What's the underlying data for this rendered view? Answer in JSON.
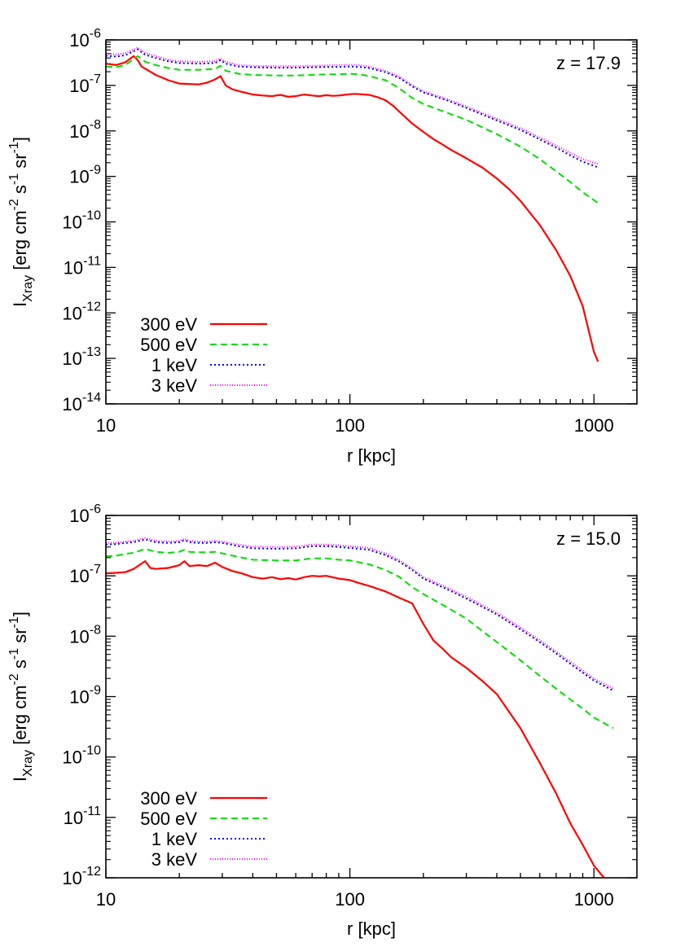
{
  "chart_data": [
    {
      "type": "line",
      "xscale": "log",
      "yscale": "log",
      "xlim": [
        10,
        1500
      ],
      "ylim": [
        1e-14,
        1e-06
      ],
      "xticks": [
        10,
        100,
        1000
      ],
      "xtick_labels": [
        "10",
        "100",
        "1000"
      ],
      "yticks_exp": [
        -6,
        -7,
        -8,
        -9,
        -10,
        -11,
        -12,
        -13,
        -14
      ],
      "ytick_base": "10",
      "xlabel": "r [kpc]",
      "ylabel": {
        "main": "I",
        "sub": "Xray",
        "units": "[erg cm",
        "e1": "-2",
        "mid1": " s",
        "e2": "-1",
        "mid2": " sr",
        "e3": "-1",
        "end": "]"
      },
      "annotation": "z = 17.9",
      "legend_position": "bottom-left",
      "series": [
        {
          "name": "300 eV",
          "color": "#ff0000",
          "dash": "solid",
          "x": [
            10,
            11,
            12,
            13,
            13.5,
            14,
            16,
            18,
            20,
            24,
            26,
            28,
            29.5,
            31,
            33,
            36,
            40,
            44,
            48,
            52,
            56,
            60,
            65,
            70,
            75,
            80,
            85,
            90,
            95,
            100,
            105,
            110,
            120,
            130,
            140,
            150,
            160,
            180,
            200,
            220,
            240,
            260,
            300,
            350,
            400,
            450,
            500,
            600,
            700,
            800,
            900,
            1000,
            1040
          ],
          "y": [
            3e-07,
            2.8e-07,
            3.2e-07,
            4.4e-07,
            3.6e-07,
            2.6e-07,
            1.7e-07,
            1.3e-07,
            1.1e-07,
            1.05e-07,
            1.15e-07,
            1.35e-07,
            1.6e-07,
            1e-07,
            8.2e-08,
            7.2e-08,
            6.3e-08,
            6e-08,
            5.8e-08,
            6.2e-08,
            5.6e-08,
            5.8e-08,
            6.3e-08,
            6e-08,
            5.8e-08,
            6.1e-08,
            5.9e-08,
            6e-08,
            6.2e-08,
            6.4e-08,
            6.5e-08,
            6.4e-08,
            6.2e-08,
            5.5e-08,
            4.7e-08,
            3.6e-08,
            2.6e-08,
            1.45e-08,
            9.5e-09,
            6.6e-09,
            5e-09,
            3.8e-09,
            2.5e-09,
            1.55e-09,
            9e-10,
            5.2e-10,
            2.9e-10,
            8.5e-11,
            2.4e-11,
            6.5e-12,
            1.4e-12,
            1.4e-13,
            8.5e-14
          ]
        },
        {
          "name": "500 eV",
          "color": "#00dd00",
          "dash": "8,5",
          "x": [
            10,
            11,
            12,
            13.5,
            14.5,
            16,
            18,
            20,
            24,
            28,
            29.5,
            31,
            35,
            40,
            50,
            60,
            70,
            80,
            90,
            100,
            110,
            120,
            140,
            160,
            180,
            200,
            250,
            300,
            400,
            500,
            600,
            700,
            800,
            900,
            1050
          ],
          "y": [
            2.6e-07,
            2.5e-07,
            2.8e-07,
            4.4e-07,
            3.3e-07,
            2.8e-07,
            2.4e-07,
            2.2e-07,
            2.2e-07,
            2.3e-07,
            2.7e-07,
            2.1e-07,
            1.8e-07,
            1.7e-07,
            1.65e-07,
            1.65e-07,
            1.7e-07,
            1.75e-07,
            1.75e-07,
            1.8e-07,
            1.75e-07,
            1.6e-07,
            1.3e-07,
            8.5e-08,
            5.3e-08,
            3.9e-08,
            2.5e-08,
            1.75e-08,
            8.5e-09,
            4.5e-09,
            2.4e-09,
            1.3e-09,
            7.5e-10,
            4.5e-10,
            2.5e-10
          ]
        },
        {
          "name": "1 keV",
          "color": "#0000ff",
          "dash": "2,3",
          "x": [
            10,
            11,
            12,
            13.5,
            14.5,
            16,
            18,
            20,
            24,
            28,
            29.5,
            31,
            35,
            40,
            50,
            60,
            70,
            80,
            90,
            100,
            110,
            120,
            140,
            160,
            180,
            200,
            250,
            300,
            400,
            500,
            600,
            700,
            800,
            900,
            1050
          ],
          "y": [
            4.5e-07,
            4.3e-07,
            4.6e-07,
            6.2e-07,
            4.7e-07,
            4e-07,
            3.4e-07,
            3.1e-07,
            3e-07,
            3.1e-07,
            3.6e-07,
            3e-07,
            2.6e-07,
            2.5e-07,
            2.45e-07,
            2.45e-07,
            2.5e-07,
            2.55e-07,
            2.55e-07,
            2.6e-07,
            2.55e-07,
            2.4e-07,
            1.95e-07,
            1.45e-07,
            9.5e-08,
            7e-08,
            4.7e-08,
            3.2e-08,
            1.7e-08,
            1.05e-08,
            6.5e-09,
            4.3e-09,
            2.9e-09,
            2.1e-09,
            1.55e-09
          ]
        },
        {
          "name": "3 keV",
          "color": "#ff00ff",
          "dash": "1,2",
          "x": [
            10,
            11,
            12,
            13.5,
            14.5,
            16,
            18,
            20,
            24,
            28,
            29.5,
            31,
            35,
            40,
            50,
            60,
            70,
            80,
            90,
            100,
            110,
            120,
            140,
            160,
            180,
            200,
            250,
            300,
            400,
            500,
            600,
            700,
            800,
            900,
            1050
          ],
          "y": [
            5e-07,
            4.8e-07,
            5.1e-07,
            6.8e-07,
            5.2e-07,
            4.4e-07,
            3.7e-07,
            3.4e-07,
            3.3e-07,
            3.4e-07,
            3.9e-07,
            3.3e-07,
            2.8e-07,
            2.7e-07,
            2.65e-07,
            2.65e-07,
            2.7e-07,
            2.75e-07,
            2.8e-07,
            2.85e-07,
            2.8e-07,
            2.6e-07,
            2.1e-07,
            1.55e-07,
            1.02e-07,
            7.5e-08,
            5e-08,
            3.45e-08,
            1.85e-08,
            1.15e-08,
            7.2e-09,
            4.8e-09,
            3.3e-09,
            2.4e-09,
            1.85e-09
          ]
        }
      ]
    },
    {
      "type": "line",
      "xscale": "log",
      "yscale": "log",
      "xlim": [
        10,
        1500
      ],
      "ylim": [
        1e-12,
        1e-06
      ],
      "xticks": [
        10,
        100,
        1000
      ],
      "xtick_labels": [
        "10",
        "100",
        "1000"
      ],
      "yticks_exp": [
        -6,
        -7,
        -8,
        -9,
        -10,
        -11,
        -12
      ],
      "ytick_base": "10",
      "xlabel": "r [kpc]",
      "ylabel": {
        "main": "I",
        "sub": "Xray",
        "units": "[erg cm",
        "e1": "-2",
        "mid1": " s",
        "e2": "-1",
        "mid2": " sr",
        "e3": "-1",
        "end": "]"
      },
      "annotation": "z = 15.0",
      "legend_position": "bottom-left",
      "series": [
        {
          "name": "300 eV",
          "color": "#ff0000",
          "dash": "solid",
          "x": [
            10,
            11,
            12,
            13,
            14.5,
            15.2,
            16,
            18,
            20,
            21,
            22,
            24,
            26,
            28,
            30,
            33,
            36,
            40,
            44,
            48,
            52,
            56,
            60,
            65,
            70,
            75,
            80,
            90,
            100,
            110,
            120,
            140,
            160,
            180,
            200,
            220,
            240,
            260,
            300,
            350,
            400,
            500,
            600,
            700,
            800,
            900,
            1000,
            1100,
            1200
          ],
          "y": [
            1.1e-07,
            1.12e-07,
            1.15e-07,
            1.3e-07,
            1.75e-07,
            1.35e-07,
            1.3e-07,
            1.35e-07,
            1.5e-07,
            1.75e-07,
            1.45e-07,
            1.5e-07,
            1.45e-07,
            1.65e-07,
            1.4e-07,
            1.2e-07,
            1.1e-07,
            9.5e-08,
            9e-08,
            9.5e-08,
            8.8e-08,
            9.2e-08,
            8.7e-08,
            9.5e-08,
            1e-07,
            9.8e-08,
            1e-07,
            9e-08,
            8.5e-08,
            7.5e-08,
            6.8e-08,
            5.5e-08,
            4.3e-08,
            3.5e-08,
            1.6e-08,
            8.5e-09,
            6.2e-09,
            4.5e-09,
            3e-09,
            1.8e-09,
            1.1e-09,
            3e-10,
            8e-11,
            2.5e-11,
            8e-12,
            3.5e-12,
            1.6e-12,
            1e-12,
            7.6e-13
          ]
        },
        {
          "name": "500 eV",
          "color": "#00dd00",
          "dash": "8,5",
          "x": [
            10,
            11,
            12,
            13,
            14.5,
            16,
            18,
            20,
            21,
            22,
            24,
            26,
            28,
            30,
            35,
            40,
            50,
            60,
            70,
            80,
            90,
            100,
            120,
            140,
            160,
            180,
            200,
            250,
            300,
            400,
            500,
            600,
            700,
            800,
            900,
            1000,
            1200
          ],
          "y": [
            2.1e-07,
            2.15e-07,
            2.3e-07,
            2.4e-07,
            2.8e-07,
            2.5e-07,
            2.4e-07,
            2.5e-07,
            2.7e-07,
            2.5e-07,
            2.45e-07,
            2.45e-07,
            2.5e-07,
            2.35e-07,
            2.05e-07,
            1.85e-07,
            1.8e-07,
            1.8e-07,
            1.95e-07,
            1.95e-07,
            1.85e-07,
            1.8e-07,
            1.55e-07,
            1.25e-07,
            9.5e-08,
            6.5e-08,
            5e-08,
            3e-08,
            1.95e-08,
            8e-09,
            4e-09,
            2.2e-09,
            1.35e-09,
            9e-10,
            6.3e-10,
            4.5e-10,
            3e-10
          ]
        },
        {
          "name": "1 keV",
          "color": "#0000ff",
          "dash": "2,3",
          "x": [
            10,
            11,
            12,
            13,
            14.5,
            16,
            18,
            20,
            21,
            22,
            24,
            26,
            28,
            30,
            35,
            40,
            50,
            60,
            70,
            80,
            90,
            100,
            120,
            140,
            160,
            180,
            200,
            250,
            300,
            400,
            500,
            600,
            700,
            800,
            900,
            1000,
            1200
          ],
          "y": [
            3.3e-07,
            3.35e-07,
            3.5e-07,
            3.6e-07,
            4e-07,
            3.6e-07,
            3.5e-07,
            3.6e-07,
            3.9e-07,
            3.6e-07,
            3.5e-07,
            3.5e-07,
            3.6e-07,
            3.5e-07,
            3.1e-07,
            2.85e-07,
            2.8e-07,
            2.85e-07,
            3.1e-07,
            3.1e-07,
            3e-07,
            2.9e-07,
            2.7e-07,
            2.2e-07,
            1.7e-07,
            1.25e-07,
            9e-08,
            6e-08,
            4.2e-08,
            2.3e-08,
            1.3e-08,
            8e-09,
            5.2e-09,
            3.5e-09,
            2.5e-09,
            1.85e-09,
            1.25e-09
          ]
        },
        {
          "name": "3 keV",
          "color": "#ff00ff",
          "dash": "1,2",
          "x": [
            10,
            11,
            12,
            13,
            14.5,
            16,
            18,
            20,
            21,
            22,
            24,
            26,
            28,
            30,
            35,
            40,
            50,
            60,
            70,
            80,
            90,
            100,
            120,
            140,
            160,
            180,
            200,
            250,
            300,
            400,
            500,
            600,
            700,
            800,
            900,
            1000,
            1200
          ],
          "y": [
            3.5e-07,
            3.55e-07,
            3.7e-07,
            3.8e-07,
            4.25e-07,
            3.8e-07,
            3.7e-07,
            3.8e-07,
            4.1e-07,
            3.8e-07,
            3.7e-07,
            3.7e-07,
            3.8e-07,
            3.7e-07,
            3.3e-07,
            3.05e-07,
            3e-07,
            3.05e-07,
            3.3e-07,
            3.3e-07,
            3.2e-07,
            3.1e-07,
            2.9e-07,
            2.35e-07,
            1.8e-07,
            1.32e-07,
            9.6e-08,
            6.4e-08,
            4.5e-08,
            2.45e-08,
            1.4e-08,
            8.6e-09,
            5.6e-09,
            3.8e-09,
            2.7e-09,
            2e-09,
            1.35e-09
          ]
        }
      ]
    }
  ]
}
